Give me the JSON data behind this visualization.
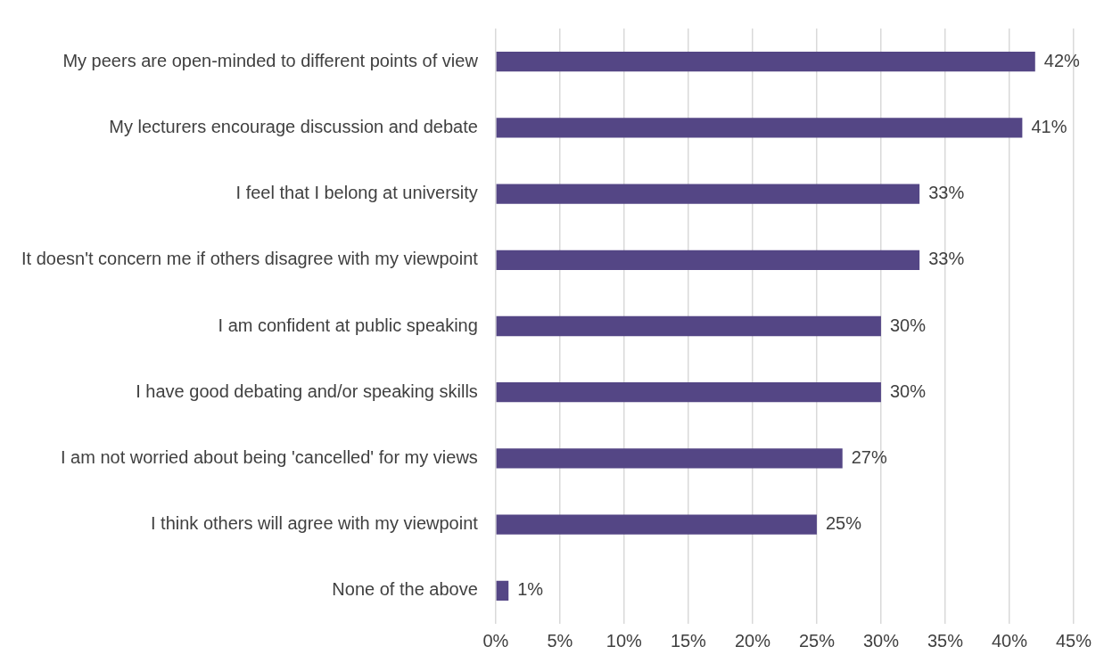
{
  "chart_data": {
    "type": "bar",
    "orientation": "horizontal",
    "categories": [
      "My peers are open-minded to different points of view",
      "My lecturers encourage discussion and debate",
      "I feel that I belong at university",
      "It doesn't concern me if others disagree with my viewpoint",
      "I am confident at public speaking",
      "I have good debating and/or speaking skills",
      "I am not worried about being 'cancelled' for my views",
      "I think others will agree with my viewpoint",
      "None of the above"
    ],
    "values": [
      42,
      41,
      33,
      33,
      30,
      30,
      27,
      25,
      1
    ],
    "value_labels": [
      "42%",
      "41%",
      "33%",
      "33%",
      "30%",
      "30%",
      "27%",
      "25%",
      "1%"
    ],
    "color": "#544685",
    "xlim": [
      0,
      45
    ],
    "xticks": [
      {
        "value": 0,
        "label": "0%"
      },
      {
        "value": 5,
        "label": "5%"
      },
      {
        "value": 10,
        "label": "10%"
      },
      {
        "value": 15,
        "label": "15%"
      },
      {
        "value": 20,
        "label": "20%"
      },
      {
        "value": 25,
        "label": "25%"
      },
      {
        "value": 30,
        "label": "30%"
      },
      {
        "value": 35,
        "label": "35%"
      },
      {
        "value": 40,
        "label": "40%"
      },
      {
        "value": 45,
        "label": "45%"
      }
    ],
    "grid": "x",
    "legend": false
  }
}
